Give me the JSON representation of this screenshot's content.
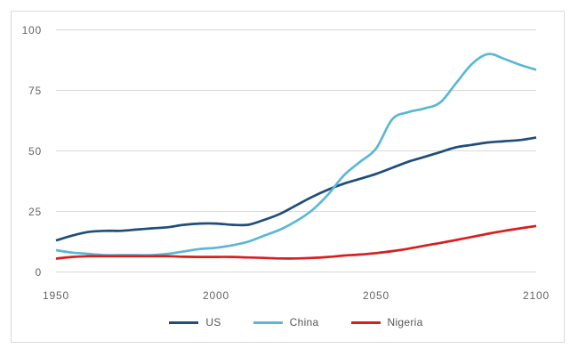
{
  "frame": {
    "border_color": "#d9d9d9",
    "background_color": "#ffffff"
  },
  "axis_style": {
    "gridline_color": "#d9d9d9",
    "tick_text_color": "#636363"
  },
  "chart_data": {
    "type": "line",
    "title": "",
    "xlabel": "",
    "ylabel": "",
    "xlim": [
      1950,
      2100
    ],
    "ylim": [
      0,
      100
    ],
    "x_ticks": [
      1950,
      2000,
      2050,
      2100
    ],
    "y_ticks": [
      0,
      25,
      50,
      75,
      100
    ],
    "grid": "horizontal-only",
    "legend_position": "bottom-center",
    "x": [
      1950,
      1955,
      1960,
      1965,
      1970,
      1975,
      1980,
      1985,
      1990,
      1995,
      2000,
      2005,
      2010,
      2015,
      2020,
      2025,
      2030,
      2035,
      2040,
      2045,
      2050,
      2055,
      2060,
      2065,
      2070,
      2075,
      2080,
      2085,
      2090,
      2095,
      2100
    ],
    "series": [
      {
        "name": "US",
        "color": "#1f4e79",
        "values": [
          13,
          15,
          16.5,
          17,
          17,
          17.5,
          18,
          18.5,
          19.5,
          20,
          20,
          19.5,
          19.5,
          21.5,
          24,
          27.5,
          31,
          34,
          36.5,
          38.5,
          40.5,
          43,
          45.5,
          47.5,
          49.5,
          51.5,
          52.5,
          53.5,
          54,
          54.5,
          55.5
        ]
      },
      {
        "name": "China",
        "color": "#5bb8d4",
        "values": [
          9,
          8,
          7.5,
          7,
          7,
          7,
          7,
          7.5,
          8.5,
          9.5,
          10,
          11,
          12.5,
          15,
          17.5,
          21,
          25.5,
          32,
          40,
          45.5,
          51,
          63,
          66,
          67.5,
          70,
          78,
          86,
          90,
          88,
          85.5,
          83.5
        ]
      },
      {
        "name": "Nigeria",
        "color": "#d81e1e",
        "values": [
          5.5,
          6.2,
          6.5,
          6.5,
          6.5,
          6.5,
          6.5,
          6.5,
          6.3,
          6.2,
          6.2,
          6.2,
          6.0,
          5.8,
          5.6,
          5.6,
          5.8,
          6.2,
          6.8,
          7.2,
          7.8,
          8.6,
          9.6,
          10.8,
          12,
          13.2,
          14.5,
          15.8,
          17,
          18,
          19
        ]
      }
    ]
  }
}
